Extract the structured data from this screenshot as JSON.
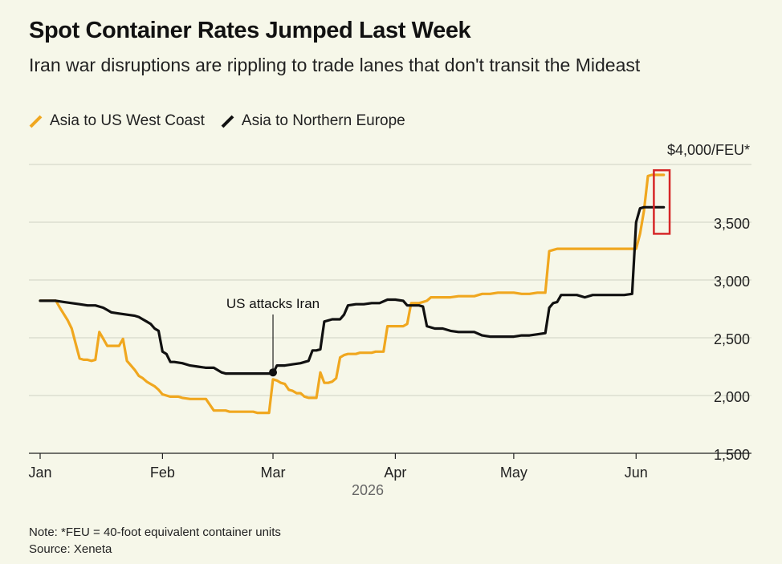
{
  "header": {
    "title": "Spot Container Rates Jumped Last Week",
    "subtitle": "Iran war disruptions are rippling to trade lanes that don't transit the Mideast"
  },
  "legend": {
    "items": [
      {
        "label": "Asia to US West Coast",
        "color": "#f0a71f"
      },
      {
        "label": "Asia to Northern Europe",
        "color": "#111111"
      }
    ]
  },
  "footer": {
    "note": "Note: *FEU = 40-foot equivalent container units",
    "source": "Source: Xeneta"
  },
  "chart_data": {
    "type": "line",
    "title": "Spot Container Rates Jumped Last Week",
    "xlabel": "2026",
    "ylabel": "",
    "xlim": [
      0,
      166
    ],
    "ylim": [
      1500,
      4000
    ],
    "grid": true,
    "legend_position": "top-left",
    "x_ticks": [
      {
        "label": "Jan",
        "x": 0
      },
      {
        "label": "Feb",
        "x": 31
      },
      {
        "label": "Mar",
        "x": 59
      },
      {
        "label": "Apr",
        "x": 90
      },
      {
        "label": "May",
        "x": 120
      },
      {
        "label": "Jun",
        "x": 151
      }
    ],
    "y_ticks": [
      {
        "value": 1500,
        "label": "1,500"
      },
      {
        "value": 2000,
        "label": "2,000"
      },
      {
        "value": 2500,
        "label": "2,500"
      },
      {
        "value": 3000,
        "label": "3,000"
      },
      {
        "value": 3500,
        "label": "3,500"
      },
      {
        "value": 4000,
        "label": "$4,000/FEU*"
      }
    ],
    "annotation": {
      "label": "US attacks Iran",
      "x": 59,
      "y": 2200
    },
    "highlight": {
      "x_start": 155.5,
      "x_end": 159.5,
      "y_low": 3400,
      "y_high": 3950,
      "color": "#d62728"
    },
    "series": [
      {
        "name": "Asia to US West Coast",
        "color": "#f0a71f",
        "x": [
          0,
          4,
          5,
          7,
          8,
          9,
          10,
          11,
          12,
          13,
          14,
          15,
          16,
          17,
          18,
          19,
          20,
          21,
          22,
          23,
          24,
          25,
          26,
          27,
          28,
          29,
          30,
          31,
          32,
          33,
          34,
          35,
          36,
          38,
          40,
          42,
          44,
          45,
          46,
          47,
          48,
          50,
          52,
          54,
          55,
          56,
          57,
          58,
          59,
          60,
          61,
          62,
          63,
          64,
          65,
          66,
          67,
          68,
          69,
          70,
          71,
          72,
          73,
          74,
          75,
          76,
          77,
          78,
          79,
          80,
          81,
          82,
          83,
          84,
          85,
          86,
          87,
          88,
          89,
          90,
          91,
          92,
          93,
          94,
          95,
          96,
          97,
          98,
          99,
          100,
          102,
          104,
          106,
          108,
          110,
          112,
          114,
          116,
          118,
          120,
          122,
          124,
          126,
          128,
          129,
          130,
          131,
          132,
          134,
          136,
          138,
          140,
          142,
          144,
          146,
          148,
          150,
          151,
          152,
          153,
          154,
          155,
          156,
          157,
          158
        ],
        "y": [
          2820,
          2820,
          2760,
          2650,
          2580,
          2450,
          2320,
          2310,
          2310,
          2300,
          2310,
          2550,
          2490,
          2430,
          2430,
          2430,
          2430,
          2490,
          2300,
          2260,
          2220,
          2170,
          2150,
          2120,
          2100,
          2080,
          2050,
          2010,
          2000,
          1990,
          1990,
          1990,
          1980,
          1970,
          1970,
          1970,
          1870,
          1870,
          1870,
          1870,
          1860,
          1860,
          1860,
          1860,
          1850,
          1850,
          1850,
          1850,
          2140,
          2130,
          2110,
          2100,
          2050,
          2040,
          2020,
          2020,
          1990,
          1980,
          1980,
          1980,
          2200,
          2110,
          2110,
          2120,
          2150,
          2330,
          2350,
          2360,
          2360,
          2360,
          2370,
          2370,
          2370,
          2370,
          2380,
          2380,
          2380,
          2600,
          2600,
          2600,
          2600,
          2600,
          2620,
          2800,
          2800,
          2800,
          2810,
          2820,
          2850,
          2850,
          2850,
          2850,
          2860,
          2860,
          2860,
          2880,
          2880,
          2890,
          2890,
          2890,
          2880,
          2880,
          2890,
          2890,
          3250,
          3260,
          3270,
          3270,
          3270,
          3270,
          3270,
          3270,
          3270,
          3270,
          3270,
          3270,
          3270,
          3270,
          3400,
          3600,
          3900,
          3910,
          3910,
          3910,
          3910
        ]
      },
      {
        "name": "Asia to Northern Europe",
        "color": "#111111",
        "x": [
          0,
          2,
          4,
          6,
          8,
          10,
          12,
          14,
          16,
          17,
          18,
          20,
          22,
          24,
          25,
          26,
          27,
          28,
          29,
          30,
          31,
          32,
          33,
          34,
          36,
          38,
          40,
          42,
          44,
          46,
          47,
          48,
          50,
          52,
          54,
          56,
          58,
          59,
          60,
          62,
          64,
          66,
          68,
          69,
          70,
          71,
          72,
          74,
          75,
          76,
          77,
          78,
          80,
          82,
          84,
          86,
          88,
          89,
          90,
          92,
          93,
          94,
          95,
          96,
          97,
          98,
          100,
          102,
          104,
          106,
          108,
          110,
          112,
          114,
          116,
          118,
          120,
          122,
          124,
          126,
          128,
          129,
          130,
          131,
          132,
          134,
          136,
          138,
          140,
          142,
          144,
          146,
          148,
          150,
          151,
          152,
          153,
          154,
          155,
          156,
          157,
          158
        ],
        "y": [
          2820,
          2820,
          2820,
          2810,
          2800,
          2790,
          2780,
          2780,
          2760,
          2740,
          2720,
          2710,
          2700,
          2690,
          2680,
          2660,
          2640,
          2620,
          2580,
          2560,
          2380,
          2360,
          2290,
          2290,
          2280,
          2260,
          2250,
          2240,
          2240,
          2200,
          2190,
          2190,
          2190,
          2190,
          2190,
          2190,
          2190,
          2190,
          2260,
          2260,
          2270,
          2280,
          2300,
          2390,
          2390,
          2400,
          2640,
          2660,
          2660,
          2660,
          2700,
          2780,
          2790,
          2790,
          2800,
          2800,
          2830,
          2830,
          2830,
          2820,
          2780,
          2780,
          2780,
          2780,
          2770,
          2600,
          2580,
          2580,
          2560,
          2550,
          2550,
          2550,
          2520,
          2510,
          2510,
          2510,
          2510,
          2520,
          2520,
          2530,
          2540,
          2760,
          2800,
          2810,
          2870,
          2870,
          2870,
          2850,
          2870,
          2870,
          2870,
          2870,
          2870,
          2880,
          3500,
          3620,
          3630,
          3630,
          3630,
          3630,
          3630,
          3630
        ]
      }
    ]
  }
}
